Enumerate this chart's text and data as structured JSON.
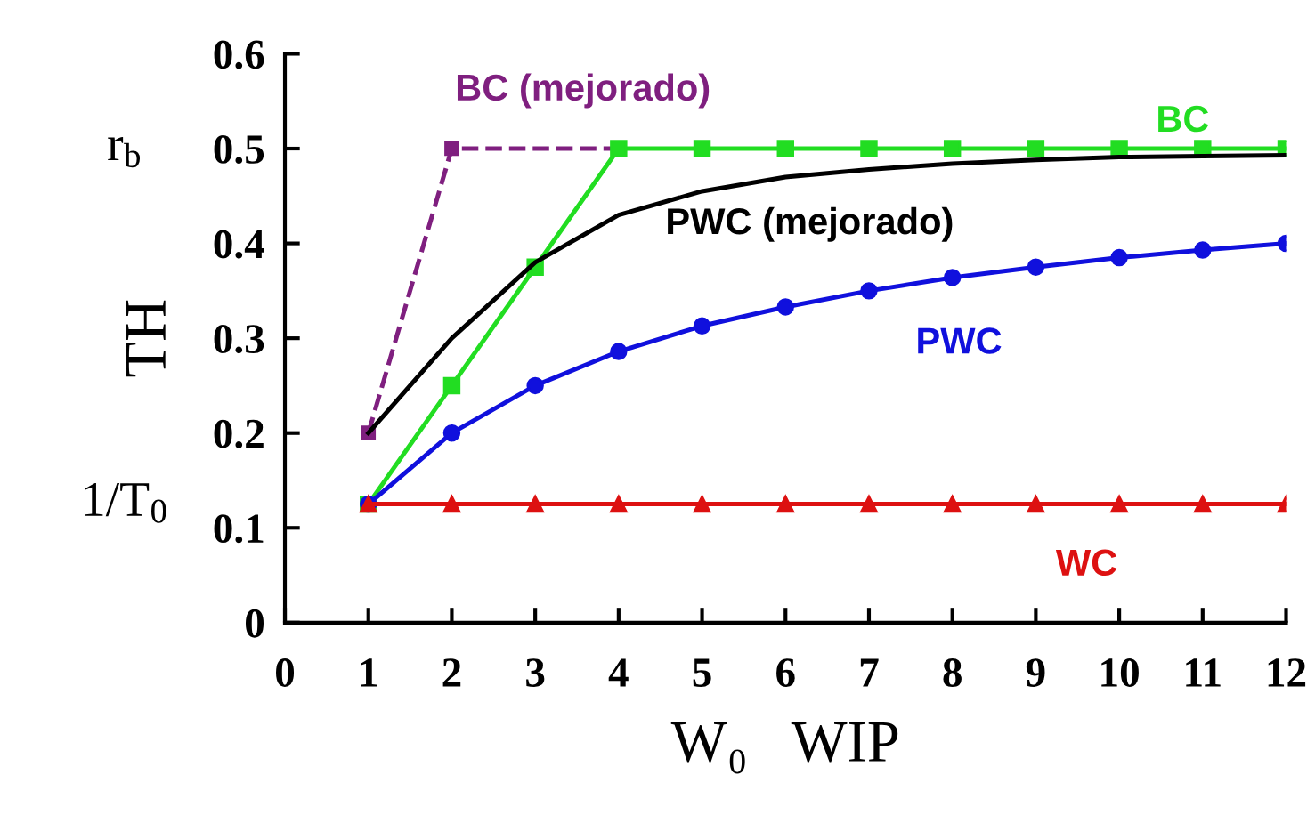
{
  "chart_data": {
    "type": "line",
    "xlabel": "W₀   WIP",
    "ylabel": "TH",
    "x": [
      1,
      2,
      3,
      4,
      5,
      6,
      7,
      8,
      9,
      10,
      11,
      12
    ],
    "series": [
      {
        "name": "BC (mejorado)",
        "color": "#7f1f7f",
        "x": [
          1,
          2,
          4
        ],
        "values": [
          0.2,
          0.5,
          0.5
        ],
        "marker": "square",
        "line_style": "dashed"
      },
      {
        "name": "BC",
        "color": "#22dd22",
        "values": [
          0.125,
          0.25,
          0.375,
          0.5,
          0.5,
          0.5,
          0.5,
          0.5,
          0.5,
          0.5,
          0.5,
          0.5
        ],
        "marker": "square",
        "line_style": "solid"
      },
      {
        "name": "PWC (mejorado)",
        "color": "#000000",
        "values": [
          0.2,
          0.3,
          0.38,
          0.43,
          0.455,
          0.47,
          0.478,
          0.484,
          0.488,
          0.491,
          0.492,
          0.493
        ],
        "marker": "none",
        "line_style": "solid"
      },
      {
        "name": "PWC",
        "color": "#1010dd",
        "values": [
          0.125,
          0.2,
          0.25,
          0.286,
          0.313,
          0.333,
          0.35,
          0.364,
          0.375,
          0.385,
          0.393,
          0.4
        ],
        "marker": "circle",
        "line_style": "solid"
      },
      {
        "name": "WC",
        "color": "#dd1111",
        "values": [
          0.125,
          0.125,
          0.125,
          0.125,
          0.125,
          0.125,
          0.125,
          0.125,
          0.125,
          0.125,
          0.125,
          0.125
        ],
        "marker": "triangle",
        "line_style": "solid"
      }
    ],
    "annotations": [
      "r$_{b}$",
      "1/T$_{0}$"
    ],
    "xlim": [
      0,
      12
    ],
    "xticks": [
      0,
      1,
      2,
      3,
      4,
      5,
      6,
      7,
      8,
      9,
      10,
      11,
      12
    ],
    "ylim": [
      0,
      0.6
    ],
    "yticks": [
      0,
      0.1,
      0.2,
      0.3,
      0.4,
      0.5,
      0.6
    ],
    "grid": false,
    "legend": false
  }
}
